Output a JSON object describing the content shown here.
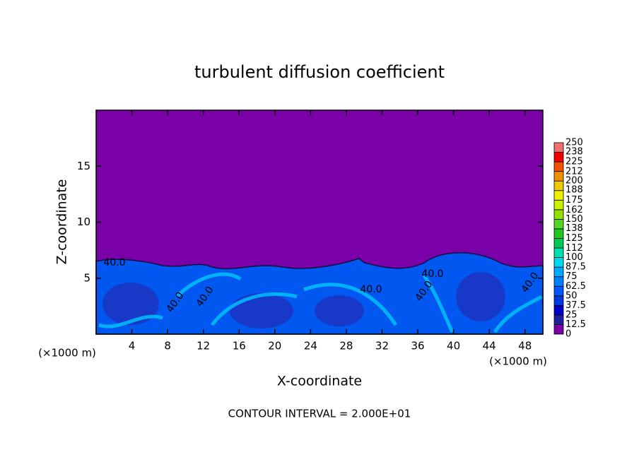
{
  "chart_data": {
    "type": "contour",
    "title": "turbulent diffusion coefficient",
    "x_label": "X-coordinate",
    "y_label": "Z-coordinate",
    "x_unit": "(×1000 m)",
    "x_unit_right": "(×1000 m)",
    "footer": "CONTOUR INTERVAL = 2.000E+01",
    "xlim": [
      0,
      50
    ],
    "xticks": [
      4,
      8,
      12,
      16,
      20,
      24,
      28,
      32,
      36,
      40,
      44,
      48
    ],
    "ylim": [
      0,
      20
    ],
    "yticks": [
      5,
      10,
      15
    ],
    "annotations": [
      "40.0",
      "40.0",
      "40.0",
      "40.0",
      "40.0",
      "40.0",
      "40.0"
    ],
    "colorbar": {
      "ticks": [
        0,
        12.5,
        25,
        37.5,
        50,
        62.5,
        75,
        87.5,
        100,
        112,
        125,
        138,
        150,
        162,
        175,
        188,
        200,
        212,
        225,
        238,
        250
      ],
      "colors": [
        "#7a00a8",
        "#1e1ea0",
        "#0000c8",
        "#0038e0",
        "#0058f8",
        "#0080ff",
        "#00a8ff",
        "#00d8f0",
        "#00e0b0",
        "#00c850",
        "#20c820",
        "#50d820",
        "#90e000",
        "#c8f000",
        "#f0f000",
        "#f0c800",
        "#f09000",
        "#f05000",
        "#f00000",
        "#f07070"
      ]
    }
  }
}
